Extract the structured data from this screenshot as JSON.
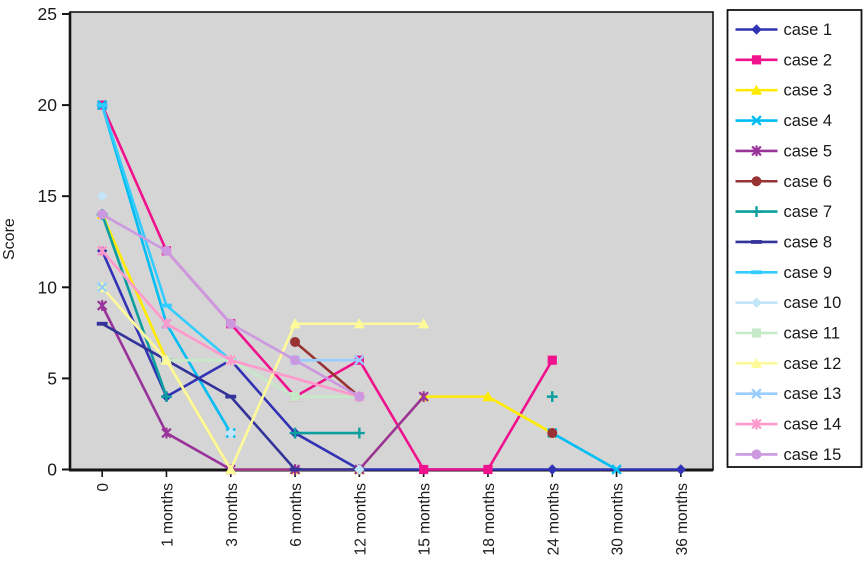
{
  "chart_data": {
    "type": "line",
    "title": "",
    "ylabel": "Score",
    "xlabel": "",
    "ylim": [
      0,
      25
    ],
    "yticks": [
      0,
      5,
      10,
      15,
      20,
      25
    ],
    "grid": false,
    "plot_bg": "#D5D5D6",
    "legend_position": "right-outside",
    "categories": [
      "0",
      "1 months",
      "3 months",
      "6 months",
      "12 months",
      "15 months",
      "18 months",
      "24 months",
      "30 months",
      "36 months"
    ],
    "category_months": [
      0,
      1,
      3,
      6,
      12,
      15,
      18,
      24,
      30,
      36
    ],
    "series": [
      {
        "name": "case 1",
        "color": "#3232B4",
        "marker": "diamond",
        "runs": [
          [
            [
              0,
              12
            ],
            [
              1,
              4
            ],
            [
              3,
              6
            ],
            [
              6,
              2
            ],
            [
              12,
              0
            ],
            [
              24,
              0
            ],
            [
              36,
              0
            ]
          ]
        ]
      },
      {
        "name": "case 2",
        "color": "#F0128C",
        "marker": "square",
        "runs": [
          [
            [
              0,
              20
            ],
            [
              1,
              12
            ],
            [
              3,
              8
            ],
            [
              6,
              4
            ],
            [
              12,
              6
            ],
            [
              15,
              0
            ],
            [
              18,
              0
            ],
            [
              24,
              6
            ]
          ]
        ]
      },
      {
        "name": "case 3",
        "color": "#FFEB00",
        "marker": "triangle",
        "runs": [
          [
            [
              0,
              14
            ],
            [
              1,
              6
            ],
            [
              3,
              0
            ],
            [
              6,
              0
            ],
            [
              12,
              0
            ],
            [
              15,
              4
            ],
            [
              18,
              4
            ],
            [
              24,
              2
            ]
          ]
        ]
      },
      {
        "name": "case 4",
        "color": "#00BDF2",
        "marker": "x",
        "runs": [
          [
            [
              0,
              20
            ],
            [
              1,
              8
            ],
            [
              3,
              2
            ]
          ],
          [
            [
              24,
              2
            ],
            [
              30,
              0
            ]
          ]
        ]
      },
      {
        "name": "case 5",
        "color": "#993399",
        "marker": "star",
        "runs": [
          [
            [
              0,
              9
            ],
            [
              1,
              2
            ],
            [
              3,
              0
            ],
            [
              6,
              0
            ],
            [
              12,
              0
            ],
            [
              15,
              4
            ]
          ]
        ]
      },
      {
        "name": "case 6",
        "color": "#993333",
        "marker": "circle",
        "runs": [
          [
            [
              6,
              7
            ],
            [
              12,
              4
            ]
          ],
          [
            [
              24,
              2
            ]
          ]
        ]
      },
      {
        "name": "case 7",
        "color": "#0D9E9E",
        "marker": "plus",
        "runs": [
          [
            [
              0,
              14
            ],
            [
              1,
              4
            ]
          ],
          [
            [
              6,
              2
            ],
            [
              12,
              2
            ]
          ],
          [
            [
              24,
              4
            ]
          ]
        ]
      },
      {
        "name": "case 8",
        "color": "#333399",
        "marker": "dash",
        "runs": [
          [
            [
              0,
              8
            ],
            [
              1,
              6
            ],
            [
              3,
              4
            ],
            [
              6,
              0
            ],
            [
              12,
              0
            ]
          ]
        ]
      },
      {
        "name": "case 9",
        "color": "#33CCFF",
        "marker": "dash",
        "runs": [
          [
            [
              0,
              20
            ],
            [
              1,
              9
            ],
            [
              3,
              6
            ]
          ]
        ]
      },
      {
        "name": "case 10",
        "color": "#C2E6F8",
        "marker": "diamond",
        "runs": [
          [
            [
              0,
              15
            ]
          ],
          [
            [
              3,
              2
            ]
          ],
          [
            [
              12,
              0
            ]
          ]
        ]
      },
      {
        "name": "case 11",
        "color": "#C6EAC8",
        "marker": "square",
        "runs": [
          [
            [
              0,
              10
            ],
            [
              1,
              6
            ],
            [
              3,
              6
            ],
            [
              6,
              4
            ],
            [
              12,
              4
            ]
          ]
        ]
      },
      {
        "name": "case 12",
        "color": "#FFFA99",
        "marker": "triangle",
        "runs": [
          [
            [
              0,
              10
            ],
            [
              1,
              6
            ],
            [
              3,
              0
            ],
            [
              6,
              8
            ],
            [
              12,
              8
            ],
            [
              15,
              8
            ]
          ]
        ]
      },
      {
        "name": "case 13",
        "color": "#99CCFF",
        "marker": "x",
        "runs": [
          [
            [
              0,
              10
            ]
          ],
          [
            [
              6,
              6
            ],
            [
              12,
              6
            ]
          ]
        ]
      },
      {
        "name": "case 14",
        "color": "#FF99CC",
        "marker": "star",
        "runs": [
          [
            [
              0,
              12
            ],
            [
              1,
              8
            ],
            [
              3,
              6
            ],
            [
              12,
              4
            ]
          ]
        ]
      },
      {
        "name": "case 15",
        "color": "#CC99E0",
        "marker": "circle",
        "runs": [
          [
            [
              0,
              14
            ],
            [
              1,
              12
            ],
            [
              3,
              8
            ],
            [
              6,
              6
            ],
            [
              12,
              4
            ]
          ]
        ]
      }
    ]
  }
}
